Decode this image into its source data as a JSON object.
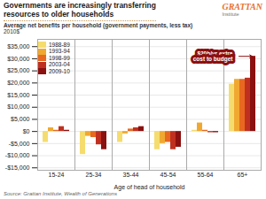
{
  "chart_data": {
    "type": "bar",
    "title": "Governments are increasingly transferring\nresources to older households",
    "subtitle": "Average net benefits per household (government payments, less tax)",
    "ylabel": "2010$",
    "xlabel": "Age of head of household",
    "source": "Source: Grattan Institute, Wealth of Generations",
    "logo": "GRATTAN",
    "logo_subtitle": "Institute",
    "annotation": "$20b/yr extra\ncost to budget",
    "categories": [
      "15-24",
      "25-34",
      "35-44",
      "45-54",
      "55-64",
      "65+"
    ],
    "series": [
      {
        "name": "1988-89",
        "color": "#F5DC6E",
        "values": [
          -4500,
          -9500,
          -4500,
          -7500,
          500,
          19500
        ]
      },
      {
        "name": "1993-94",
        "color": "#F0A830",
        "values": [
          1500,
          -2000,
          -1000,
          -5000,
          3500,
          21500
        ]
      },
      {
        "name": "1998-99",
        "color": "#E86820",
        "values": [
          500,
          -2500,
          1000,
          -4500,
          500,
          21500
        ]
      },
      {
        "name": "2003-04",
        "color": "#C03020",
        "values": [
          2000,
          -5500,
          1500,
          -7500,
          -500,
          22000
        ]
      },
      {
        "name": "2009-10",
        "color": "#8B1010",
        "values": [
          500,
          -7500,
          2000,
          -6500,
          -500,
          31000
        ]
      }
    ],
    "ylim": [
      -16000,
      38000
    ],
    "yticks": [
      {
        "value": -15000,
        "label": "-$15,000"
      },
      {
        "value": -10000,
        "label": "-$10,000"
      },
      {
        "value": -5000,
        "label": "-$5,000"
      },
      {
        "value": 0,
        "label": "$0"
      },
      {
        "value": 5000,
        "label": "$5,000"
      },
      {
        "value": 10000,
        "label": "$10,000"
      },
      {
        "value": 15000,
        "label": "$15,000"
      },
      {
        "value": 20000,
        "label": "$20,000"
      },
      {
        "value": 25000,
        "label": "$25,000"
      },
      {
        "value": 30000,
        "label": "$30,000"
      },
      {
        "value": 35000,
        "label": "$35,000"
      }
    ],
    "grid": true,
    "legend": "upper left"
  }
}
